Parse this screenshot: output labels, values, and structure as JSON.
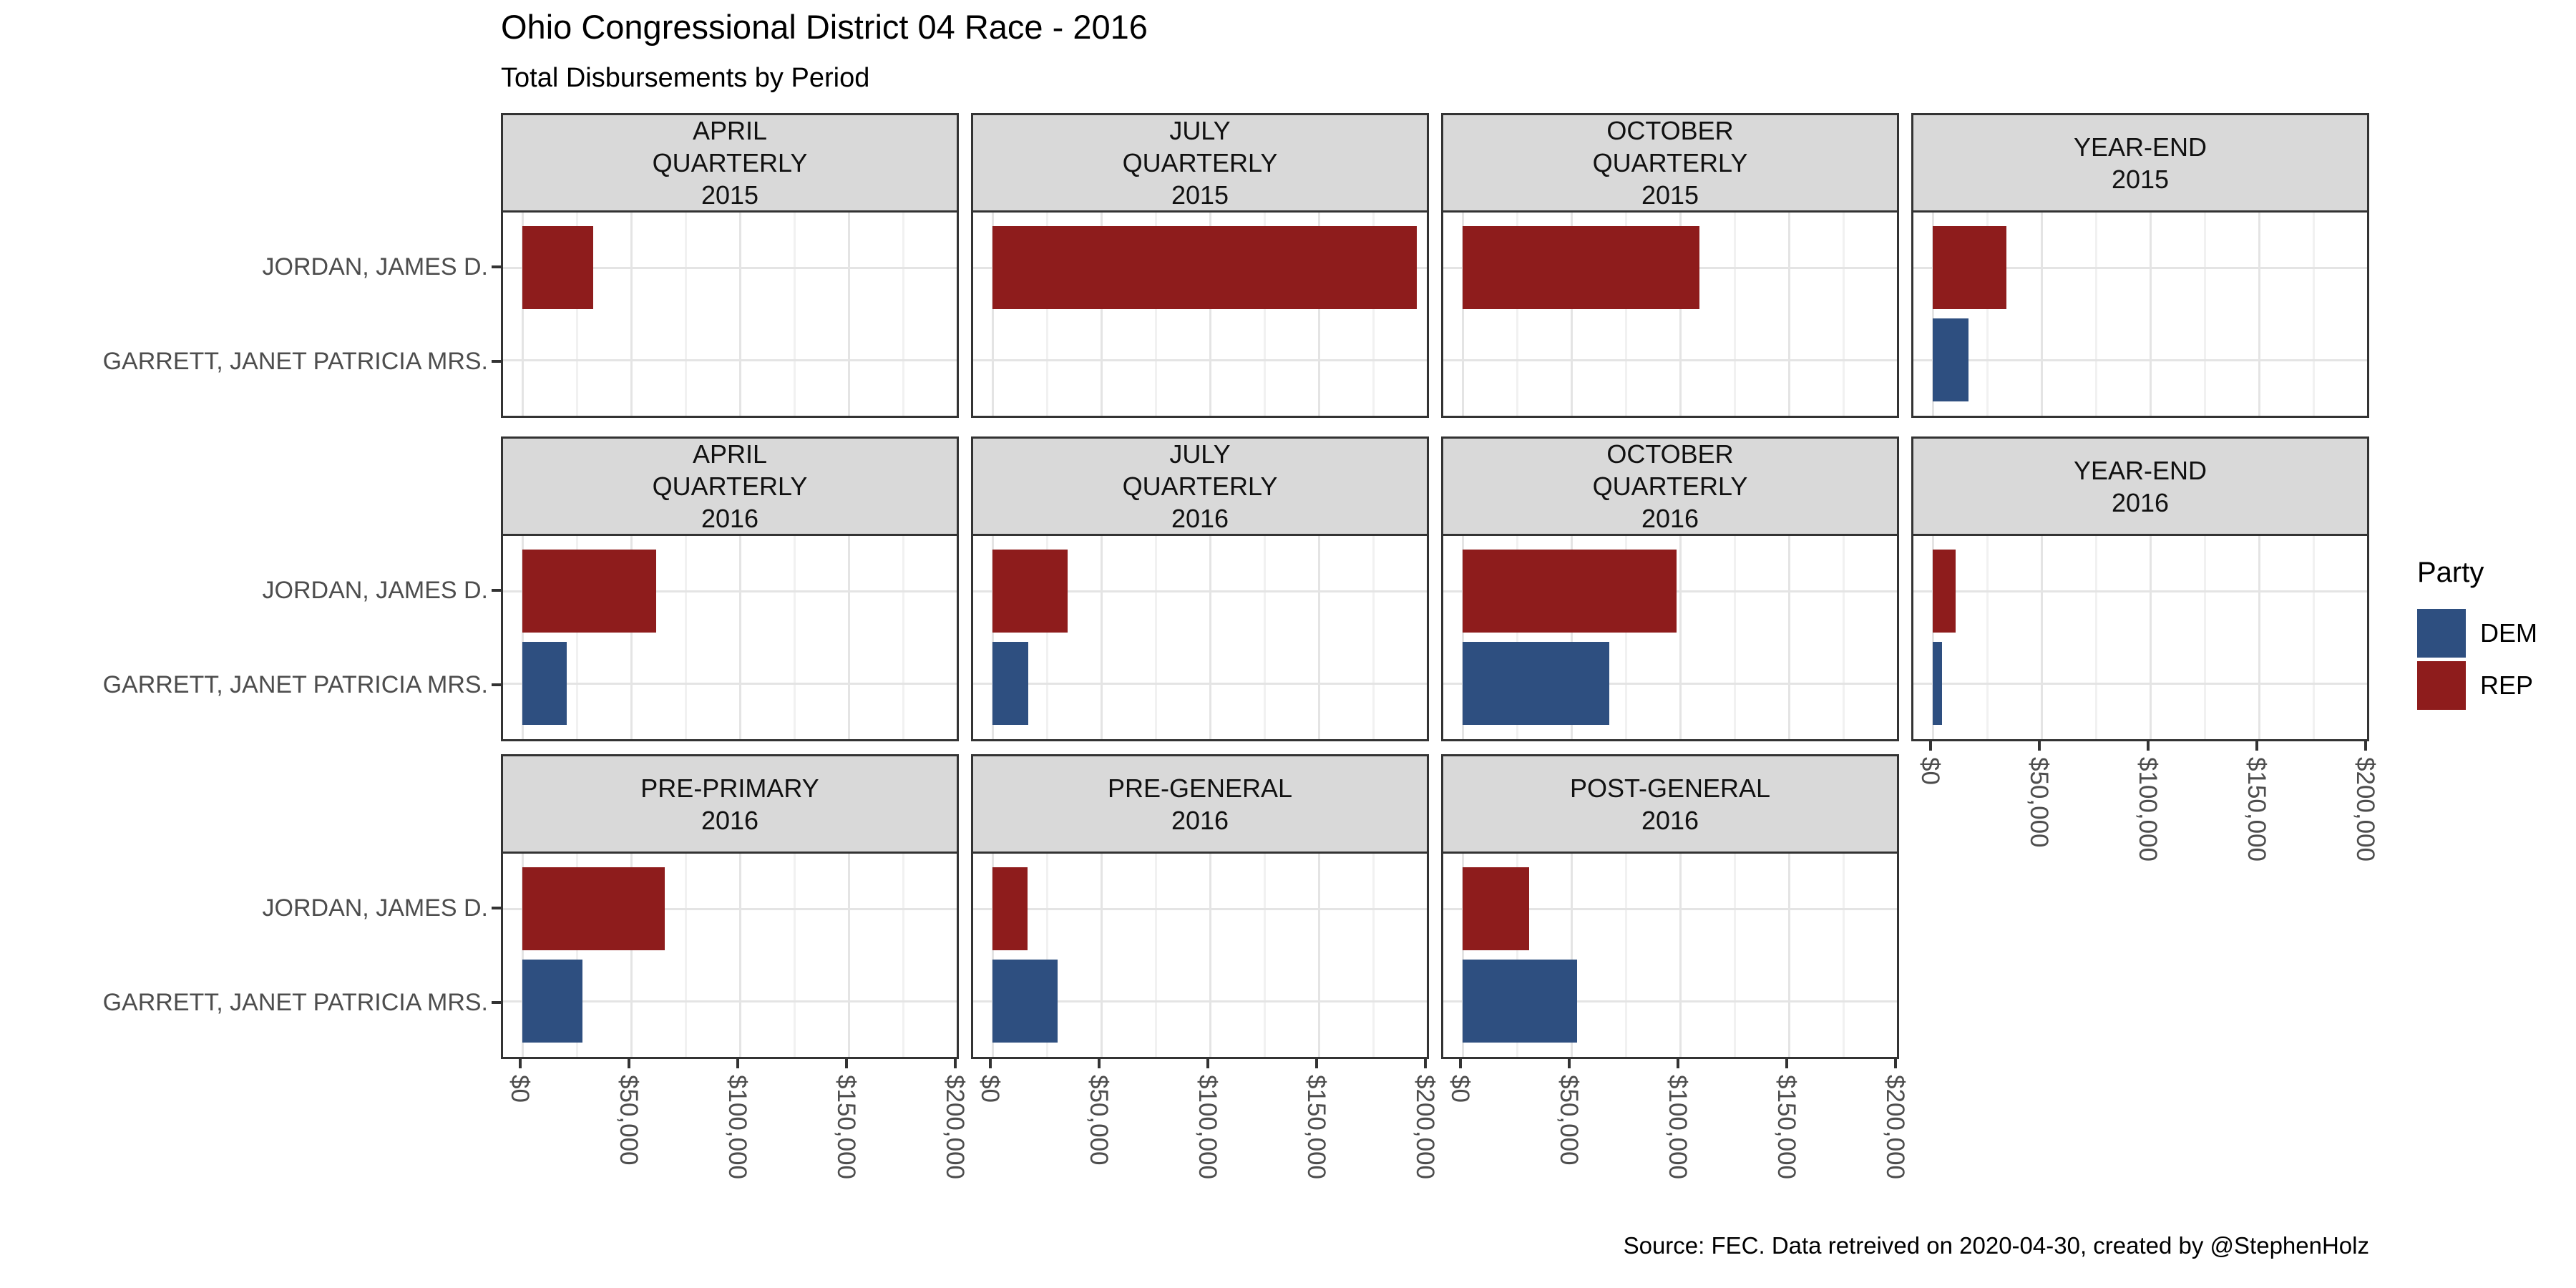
{
  "title": "Ohio Congressional District 04 Race - 2016",
  "subtitle": "Total Disbursements by Period",
  "caption": "Source: FEC. Data retreived on 2020-04-30, created by @StephenHolz",
  "legend": {
    "title": "Party",
    "entries": [
      {
        "label": "DEM",
        "color": "#2E4F80"
      },
      {
        "label": "REP",
        "color": "#8E1C1C"
      }
    ]
  },
  "colors": {
    "dem": "#2E4F80",
    "rep": "#8E1C1C",
    "strip_background": "#D9D9D9",
    "panel_border": "#333333",
    "grid_major": "#E4E4E4",
    "grid_minor": "#F1F1F1",
    "axis_text": "#4D4D4D"
  },
  "chart_data": {
    "type": "bar",
    "orientation": "horizontal",
    "title": "Ohio Congressional District 04 Race - 2016",
    "subtitle": "Total Disbursements by Period",
    "categories": [
      "JORDAN, JAMES D.",
      "GARRETT, JANET PATRICIA MRS."
    ],
    "category_party": [
      "REP",
      "DEM"
    ],
    "legend_position": "right",
    "grid": true,
    "x_axis": {
      "tick_labels": [
        "$0",
        "$50,000",
        "$100,000",
        "$150,000",
        "$200,000"
      ],
      "tick_values": [
        0,
        50000,
        100000,
        150000,
        200000
      ],
      "range": [
        0,
        200000
      ]
    },
    "facets": [
      {
        "row": 1,
        "col": 1,
        "label_lines": [
          "APRIL",
          "QUARTERLY",
          "2015"
        ],
        "values": [
          32500,
          0
        ]
      },
      {
        "row": 1,
        "col": 2,
        "label_lines": [
          "JULY",
          "QUARTERLY",
          "2015"
        ],
        "values": [
          195000,
          0
        ]
      },
      {
        "row": 1,
        "col": 3,
        "label_lines": [
          "OCTOBER",
          "QUARTERLY",
          "2015"
        ],
        "values": [
          109000,
          0
        ]
      },
      {
        "row": 1,
        "col": 4,
        "label_lines": [
          "YEAR-END",
          "2015"
        ],
        "values": [
          34000,
          16500
        ]
      },
      {
        "row": 2,
        "col": 1,
        "label_lines": [
          "APRIL",
          "QUARTERLY",
          "2016"
        ],
        "values": [
          61500,
          20500
        ]
      },
      {
        "row": 2,
        "col": 2,
        "label_lines": [
          "JULY",
          "QUARTERLY",
          "2016"
        ],
        "values": [
          34500,
          16500
        ]
      },
      {
        "row": 2,
        "col": 3,
        "label_lines": [
          "OCTOBER",
          "QUARTERLY",
          "2016"
        ],
        "values": [
          98500,
          67500
        ]
      },
      {
        "row": 2,
        "col": 4,
        "label_lines": [
          "YEAR-END",
          "2016"
        ],
        "values": [
          10500,
          4400
        ]
      },
      {
        "row": 3,
        "col": 1,
        "label_lines": [
          "PRE-PRIMARY",
          "2016"
        ],
        "values": [
          65500,
          27500
        ]
      },
      {
        "row": 3,
        "col": 2,
        "label_lines": [
          "PRE-GENERAL",
          "2016"
        ],
        "values": [
          16000,
          30000
        ]
      },
      {
        "row": 3,
        "col": 3,
        "label_lines": [
          "POST-GENERAL",
          "2016"
        ],
        "values": [
          30500,
          52500
        ]
      }
    ]
  }
}
